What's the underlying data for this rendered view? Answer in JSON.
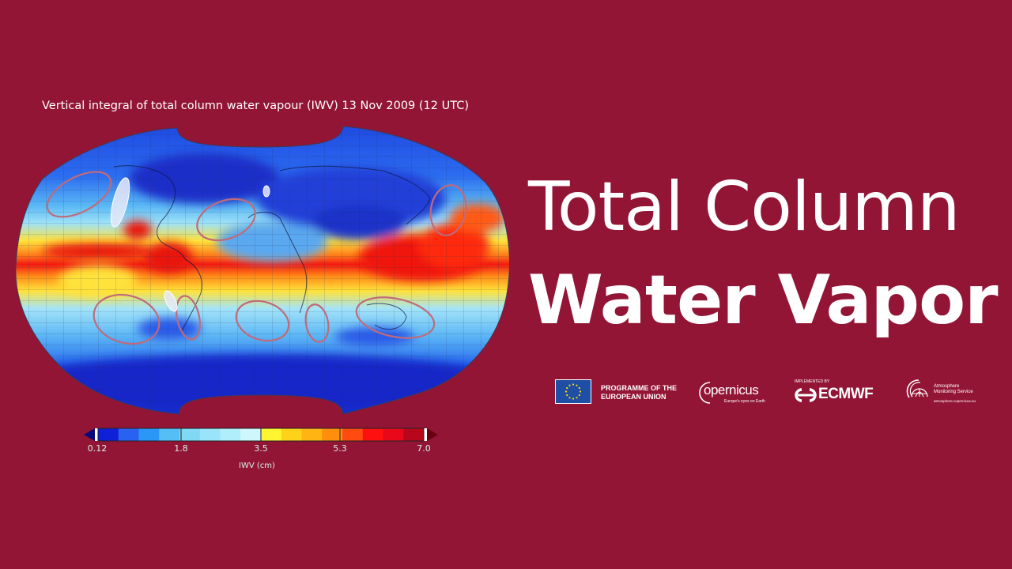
{
  "colors": {
    "background": "#931535",
    "text": "#ffffff",
    "ocean_low": "#1a3fd8",
    "map_mid": "#8fd6f5",
    "map_high": "#e0101a"
  },
  "map": {
    "caption": "Vertical integral of total column water vapour (IWV) 13 Nov 2009 (12 UTC)",
    "projection": "Robinson-style world map",
    "highlight_ellipses": {
      "red_count": 8,
      "white_count": 3
    }
  },
  "colorbar": {
    "unit_label": "IWV (cm)",
    "tick_labels": [
      "0.12",
      "1.8",
      "3.5",
      "5.3",
      "7.0"
    ],
    "tick_positions_pct": [
      3,
      28,
      51.5,
      74.5,
      97
    ],
    "segments": [
      "#1020d8",
      "#2a62f0",
      "#2a96f5",
      "#55bff5",
      "#80d8f5",
      "#99e4f8",
      "#b0eefa",
      "#cff7fb",
      "#fff530",
      "#ffd21a",
      "#ffb414",
      "#ff8f0c",
      "#ff4a10",
      "#ff1010",
      "#e8081a",
      "#b8061a"
    ],
    "min_arrow_color": "#0a0a7a",
    "max_arrow_color": "#6a0010"
  },
  "title": {
    "line1": "Total Column",
    "line2": "Water Vapor"
  },
  "logos": {
    "eu": {
      "text_line1": "PROGRAMME OF THE",
      "text_line2": "EUROPEAN UNION"
    },
    "copernicus": {
      "name": "opernicus",
      "initial": "C",
      "tagline": "Europe's eyes on Earth"
    },
    "ecmwf": {
      "implemented_by": "IMPLEMENTED BY",
      "name": "ECMWF"
    },
    "cams": {
      "line1": "Atmosphere",
      "line2": "Monitoring Service",
      "url": "atmosphere.copernicus.eu"
    }
  }
}
